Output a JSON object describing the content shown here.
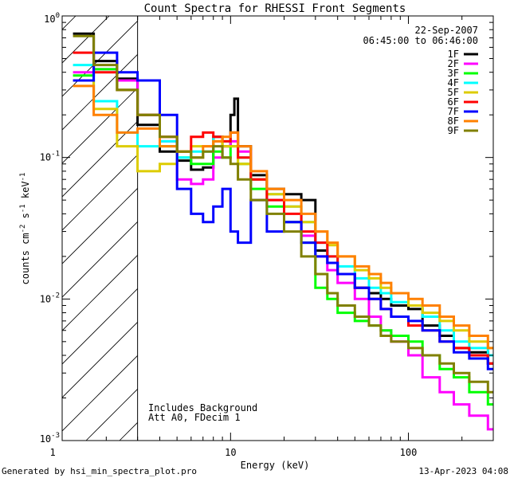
{
  "chart_data": {
    "type": "line",
    "title": "Count Spectra for RHESSI Front Segments",
    "xlabel": "Energy (keV)",
    "ylabel_parts": {
      "a": "counts cm",
      "b": "-2",
      "c": " s",
      "d": "-1",
      "e": " keV",
      "f": "-1"
    },
    "xscale": "log",
    "yscale": "log",
    "xlim": [
      1.13,
      300
    ],
    "ylim": [
      0.001,
      1.0
    ],
    "x_ticks": [
      {
        "v": 1,
        "label": "1"
      },
      {
        "v": 10,
        "label": "10"
      },
      {
        "v": 100,
        "label": "100"
      }
    ],
    "y_ticks": [
      {
        "v": 1.0,
        "base": "10",
        "exp": "0"
      },
      {
        "v": 0.1,
        "base": "10",
        "exp": "-1"
      },
      {
        "v": 0.01,
        "base": "10",
        "exp": "-2"
      },
      {
        "v": 0.001,
        "base": "10",
        "exp": "-3"
      }
    ],
    "hatched_region_keV": [
      1.13,
      3.0
    ],
    "annotations": {
      "date": "22-Sep-2007",
      "time_range": "06:45:00 to 06:46:00",
      "background_note": "Includes Background",
      "attenuator_note": "Att A0, FDecim 1"
    },
    "footer": {
      "left": "Generated by hsi_min_spectra_plot.pro",
      "right": "13-Apr-2023 04:08"
    },
    "series": [
      {
        "name": "1F",
        "color": "#000000",
        "width": 3,
        "points": [
          [
            1.3,
            0.75
          ],
          [
            1.7,
            0.48
          ],
          [
            2.3,
            0.36
          ],
          [
            3,
            0.17
          ],
          [
            4,
            0.11
          ],
          [
            5,
            0.095
          ],
          [
            6,
            0.082
          ],
          [
            7,
            0.085
          ],
          [
            8,
            0.14
          ],
          [
            9,
            0.12
          ],
          [
            10,
            0.2
          ],
          [
            10.5,
            0.26
          ],
          [
            11,
            0.12
          ],
          [
            13,
            0.075
          ],
          [
            16,
            0.06
          ],
          [
            20,
            0.055
          ],
          [
            25,
            0.05
          ],
          [
            30,
            0.022
          ],
          [
            35,
            0.018
          ],
          [
            40,
            0.015
          ],
          [
            50,
            0.012
          ],
          [
            60,
            0.011
          ],
          [
            70,
            0.01
          ],
          [
            80,
            0.009
          ],
          [
            100,
            0.0085
          ],
          [
            120,
            0.0065
          ],
          [
            150,
            0.0055
          ],
          [
            180,
            0.0045
          ],
          [
            220,
            0.0042
          ],
          [
            280,
            0.0035
          ]
        ]
      },
      {
        "name": "2F",
        "color": "#ff00ff",
        "width": 3,
        "points": [
          [
            1.3,
            0.4
          ],
          [
            1.7,
            0.42
          ],
          [
            2.3,
            0.35
          ],
          [
            3,
            0.2
          ],
          [
            4,
            0.13
          ],
          [
            5,
            0.07
          ],
          [
            6,
            0.065
          ],
          [
            7,
            0.07
          ],
          [
            8,
            0.1
          ],
          [
            9,
            0.12
          ],
          [
            10,
            0.13
          ],
          [
            11,
            0.11
          ],
          [
            13,
            0.07
          ],
          [
            16,
            0.05
          ],
          [
            20,
            0.035
          ],
          [
            25,
            0.028
          ],
          [
            30,
            0.02
          ],
          [
            35,
            0.016
          ],
          [
            40,
            0.013
          ],
          [
            50,
            0.01
          ],
          [
            60,
            0.0075
          ],
          [
            70,
            0.006
          ],
          [
            80,
            0.005
          ],
          [
            100,
            0.004
          ],
          [
            120,
            0.0028
          ],
          [
            150,
            0.0022
          ],
          [
            180,
            0.0018
          ],
          [
            220,
            0.0015
          ],
          [
            280,
            0.0012
          ]
        ]
      },
      {
        "name": "3F",
        "color": "#00ff00",
        "width": 3,
        "points": [
          [
            1.3,
            0.38
          ],
          [
            1.7,
            0.42
          ],
          [
            2.3,
            0.3
          ],
          [
            3,
            0.2
          ],
          [
            4,
            0.12
          ],
          [
            5,
            0.1
          ],
          [
            6,
            0.09
          ],
          [
            7,
            0.09
          ],
          [
            8,
            0.11
          ],
          [
            9,
            0.1
          ],
          [
            10,
            0.12
          ],
          [
            11,
            0.09
          ],
          [
            13,
            0.06
          ],
          [
            16,
            0.045
          ],
          [
            20,
            0.035
          ],
          [
            25,
            0.025
          ],
          [
            30,
            0.012
          ],
          [
            35,
            0.01
          ],
          [
            40,
            0.008
          ],
          [
            50,
            0.007
          ],
          [
            60,
            0.0065
          ],
          [
            70,
            0.006
          ],
          [
            80,
            0.0055
          ],
          [
            100,
            0.005
          ],
          [
            120,
            0.004
          ],
          [
            150,
            0.0032
          ],
          [
            180,
            0.0028
          ],
          [
            220,
            0.0022
          ],
          [
            280,
            0.0018
          ]
        ]
      },
      {
        "name": "4F",
        "color": "#00ffff",
        "width": 3,
        "points": [
          [
            1.3,
            0.45
          ],
          [
            1.7,
            0.25
          ],
          [
            2.3,
            0.15
          ],
          [
            3,
            0.12
          ],
          [
            4,
            0.13
          ],
          [
            5,
            0.1
          ],
          [
            6,
            0.11
          ],
          [
            7,
            0.11
          ],
          [
            8,
            0.14
          ],
          [
            9,
            0.13
          ],
          [
            10,
            0.15
          ],
          [
            11,
            0.1
          ],
          [
            13,
            0.07
          ],
          [
            16,
            0.055
          ],
          [
            20,
            0.045
          ],
          [
            25,
            0.035
          ],
          [
            30,
            0.025
          ],
          [
            35,
            0.02
          ],
          [
            40,
            0.017
          ],
          [
            50,
            0.014
          ],
          [
            60,
            0.012
          ],
          [
            70,
            0.011
          ],
          [
            80,
            0.0095
          ],
          [
            100,
            0.009
          ],
          [
            120,
            0.0075
          ],
          [
            150,
            0.006
          ],
          [
            180,
            0.005
          ],
          [
            220,
            0.0045
          ],
          [
            280,
            0.004
          ]
        ]
      },
      {
        "name": "5F",
        "color": "#ddcc00",
        "width": 3,
        "points": [
          [
            1.3,
            0.35
          ],
          [
            1.7,
            0.22
          ],
          [
            2.3,
            0.12
          ],
          [
            3,
            0.08
          ],
          [
            4,
            0.09
          ],
          [
            5,
            0.11
          ],
          [
            6,
            0.12
          ],
          [
            7,
            0.12
          ],
          [
            8,
            0.13
          ],
          [
            9,
            0.12
          ],
          [
            10,
            0.12
          ],
          [
            11,
            0.09
          ],
          [
            13,
            0.07
          ],
          [
            16,
            0.055
          ],
          [
            20,
            0.045
          ],
          [
            25,
            0.035
          ],
          [
            30,
            0.03
          ],
          [
            35,
            0.024
          ],
          [
            40,
            0.02
          ],
          [
            50,
            0.016
          ],
          [
            60,
            0.014
          ],
          [
            70,
            0.012
          ],
          [
            80,
            0.011
          ],
          [
            100,
            0.009
          ],
          [
            120,
            0.008
          ],
          [
            150,
            0.007
          ],
          [
            180,
            0.006
          ],
          [
            220,
            0.005
          ],
          [
            280,
            0.0045
          ]
        ]
      },
      {
        "name": "6F",
        "color": "#ff0000",
        "width": 3,
        "points": [
          [
            1.3,
            0.55
          ],
          [
            1.7,
            0.4
          ],
          [
            2.3,
            0.3
          ],
          [
            3,
            0.2
          ],
          [
            4,
            0.14
          ],
          [
            5,
            0.11
          ],
          [
            6,
            0.14
          ],
          [
            7,
            0.15
          ],
          [
            8,
            0.14
          ],
          [
            9,
            0.13
          ],
          [
            10,
            0.15
          ],
          [
            11,
            0.1
          ],
          [
            13,
            0.07
          ],
          [
            16,
            0.05
          ],
          [
            20,
            0.04
          ],
          [
            25,
            0.03
          ],
          [
            30,
            0.025
          ],
          [
            35,
            0.02
          ],
          [
            40,
            0.015
          ],
          [
            50,
            0.012
          ],
          [
            60,
            0.01
          ],
          [
            70,
            0.0085
          ],
          [
            80,
            0.0075
          ],
          [
            100,
            0.0065
          ],
          [
            120,
            0.006
          ],
          [
            150,
            0.005
          ],
          [
            180,
            0.0045
          ],
          [
            220,
            0.004
          ],
          [
            280,
            0.0035
          ]
        ]
      },
      {
        "name": "7F",
        "color": "#0000ff",
        "width": 3,
        "points": [
          [
            1.3,
            0.35
          ],
          [
            1.7,
            0.55
          ],
          [
            2.3,
            0.4
          ],
          [
            3,
            0.35
          ],
          [
            4,
            0.2
          ],
          [
            5,
            0.06
          ],
          [
            6,
            0.04
          ],
          [
            7,
            0.035
          ],
          [
            8,
            0.045
          ],
          [
            9,
            0.06
          ],
          [
            10,
            0.03
          ],
          [
            11,
            0.025
          ],
          [
            13,
            0.05
          ],
          [
            16,
            0.03
          ],
          [
            20,
            0.035
          ],
          [
            25,
            0.025
          ],
          [
            30,
            0.02
          ],
          [
            35,
            0.018
          ],
          [
            40,
            0.015
          ],
          [
            50,
            0.012
          ],
          [
            60,
            0.01
          ],
          [
            70,
            0.0085
          ],
          [
            80,
            0.0075
          ],
          [
            100,
            0.007
          ],
          [
            120,
            0.006
          ],
          [
            150,
            0.005
          ],
          [
            180,
            0.0042
          ],
          [
            220,
            0.0038
          ],
          [
            280,
            0.0032
          ]
        ]
      },
      {
        "name": "8F",
        "color": "#ff8000",
        "width": 3,
        "points": [
          [
            1.3,
            0.32
          ],
          [
            1.7,
            0.2
          ],
          [
            2.3,
            0.15
          ],
          [
            3,
            0.16
          ],
          [
            4,
            0.12
          ],
          [
            5,
            0.11
          ],
          [
            6,
            0.1
          ],
          [
            7,
            0.12
          ],
          [
            8,
            0.13
          ],
          [
            9,
            0.14
          ],
          [
            10,
            0.15
          ],
          [
            11,
            0.12
          ],
          [
            13,
            0.08
          ],
          [
            16,
            0.06
          ],
          [
            20,
            0.05
          ],
          [
            25,
            0.04
          ],
          [
            30,
            0.03
          ],
          [
            35,
            0.025
          ],
          [
            40,
            0.02
          ],
          [
            50,
            0.017
          ],
          [
            60,
            0.015
          ],
          [
            70,
            0.013
          ],
          [
            80,
            0.011
          ],
          [
            100,
            0.01
          ],
          [
            120,
            0.009
          ],
          [
            150,
            0.0075
          ],
          [
            180,
            0.0065
          ],
          [
            220,
            0.0055
          ],
          [
            280,
            0.0045
          ]
        ]
      },
      {
        "name": "9F",
        "color": "#808000",
        "width": 3,
        "points": [
          [
            1.3,
            0.72
          ],
          [
            1.7,
            0.45
          ],
          [
            2.3,
            0.3
          ],
          [
            3,
            0.2
          ],
          [
            4,
            0.14
          ],
          [
            5,
            0.11
          ],
          [
            6,
            0.1
          ],
          [
            7,
            0.11
          ],
          [
            8,
            0.12
          ],
          [
            9,
            0.1
          ],
          [
            10,
            0.09
          ],
          [
            11,
            0.07
          ],
          [
            13,
            0.05
          ],
          [
            16,
            0.04
          ],
          [
            20,
            0.03
          ],
          [
            25,
            0.02
          ],
          [
            30,
            0.015
          ],
          [
            35,
            0.011
          ],
          [
            40,
            0.009
          ],
          [
            50,
            0.0075
          ],
          [
            60,
            0.0065
          ],
          [
            70,
            0.0055
          ],
          [
            80,
            0.005
          ],
          [
            100,
            0.0045
          ],
          [
            120,
            0.004
          ],
          [
            150,
            0.0035
          ],
          [
            180,
            0.003
          ],
          [
            220,
            0.0026
          ],
          [
            280,
            0.0022
          ]
        ]
      }
    ]
  }
}
